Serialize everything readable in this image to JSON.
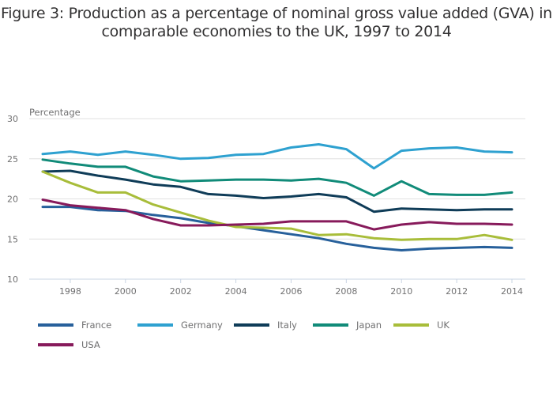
{
  "chart_data": {
    "type": "line",
    "title": "Figure 3: Production as a percentage of nominal gross value added (GVA) in comparable economies to the UK, 1997 to 2014",
    "xlabel": "",
    "ylabel": "Percentage",
    "ylim": [
      10,
      30
    ],
    "xlim": [
      1997,
      2014
    ],
    "yticks": [
      "30",
      "25",
      "20",
      "15",
      "10"
    ],
    "ytick_values": [
      30,
      25,
      20,
      15,
      10
    ],
    "xticks": [
      "1998",
      "2000",
      "2002",
      "2004",
      "2006",
      "2008",
      "2010",
      "2012",
      "2014"
    ],
    "xtick_values": [
      1998,
      2000,
      2002,
      2004,
      2006,
      2008,
      2010,
      2012,
      2014
    ],
    "grid": true,
    "legend_position": "bottom",
    "x": [
      1997,
      1998,
      1999,
      2000,
      2001,
      2002,
      2003,
      2004,
      2005,
      2006,
      2007,
      2008,
      2009,
      2010,
      2011,
      2012,
      2013,
      2014
    ],
    "series": [
      {
        "name": "France",
        "color": "#27609b",
        "values": [
          19.0,
          19.0,
          18.6,
          18.5,
          18.0,
          17.6,
          17.0,
          16.6,
          16.1,
          15.6,
          15.1,
          14.4,
          13.9,
          13.6,
          13.8,
          13.9,
          14.0,
          13.9
        ]
      },
      {
        "name": "Germany",
        "color": "#2ea1d0",
        "values": [
          25.6,
          25.9,
          25.5,
          25.9,
          25.5,
          25.0,
          25.1,
          25.5,
          25.6,
          26.4,
          26.8,
          26.2,
          23.8,
          26.0,
          26.3,
          26.4,
          25.9,
          25.8
        ]
      },
      {
        "name": "Italy",
        "color": "#0f3c58",
        "values": [
          23.4,
          23.5,
          22.9,
          22.4,
          21.8,
          21.5,
          20.6,
          20.4,
          20.1,
          20.3,
          20.6,
          20.2,
          18.4,
          18.8,
          18.7,
          18.6,
          18.7,
          18.7
        ]
      },
      {
        "name": "Japan",
        "color": "#118b79",
        "values": [
          24.9,
          24.4,
          24.0,
          24.0,
          22.8,
          22.2,
          22.3,
          22.4,
          22.4,
          22.3,
          22.5,
          22.0,
          20.4,
          22.2,
          20.6,
          20.5,
          20.5,
          20.8
        ]
      },
      {
        "name": "UK",
        "color": "#a8bd3a",
        "values": [
          23.4,
          22.0,
          20.8,
          20.8,
          19.3,
          18.3,
          17.3,
          16.5,
          16.4,
          16.3,
          15.5,
          15.6,
          15.1,
          14.9,
          15.0,
          15.0,
          15.5,
          14.9
        ]
      },
      {
        "name": "USA",
        "color": "#871a5b",
        "values": [
          19.9,
          19.2,
          18.9,
          18.6,
          17.5,
          16.7,
          16.7,
          16.8,
          16.9,
          17.2,
          17.2,
          17.2,
          16.2,
          16.8,
          17.1,
          16.9,
          16.9,
          16.8
        ]
      }
    ]
  },
  "colors": {
    "title": "#323132",
    "tick_text": "#707071",
    "gridline": "#e0e0e0",
    "axis_line": "#c9d4e3"
  }
}
